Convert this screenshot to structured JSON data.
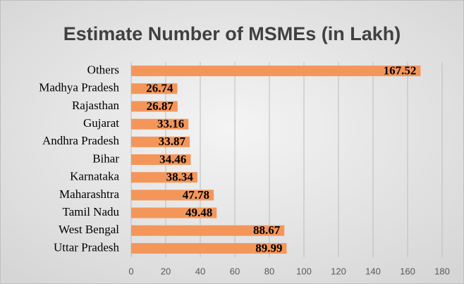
{
  "chart_data": {
    "type": "bar",
    "orientation": "horizontal",
    "title": "Estimate Number of MSMEs (in Lakh)",
    "categories": [
      "Others",
      "Madhya Pradesh",
      "Rajasthan",
      "Gujarat",
      "Andhra Pradesh",
      "Bihar",
      "Karnataka",
      "Maharashtra",
      "Tamil Nadu",
      "West Bengal",
      "Uttar Pradesh"
    ],
    "values": [
      167.52,
      26.74,
      26.87,
      33.16,
      33.87,
      34.46,
      38.34,
      47.78,
      49.48,
      88.67,
      89.99
    ],
    "color": "#f4965a",
    "xlim": [
      0,
      180
    ],
    "xticks": [
      0,
      20,
      40,
      60,
      80,
      100,
      120,
      140,
      160,
      180
    ],
    "grid": true
  }
}
